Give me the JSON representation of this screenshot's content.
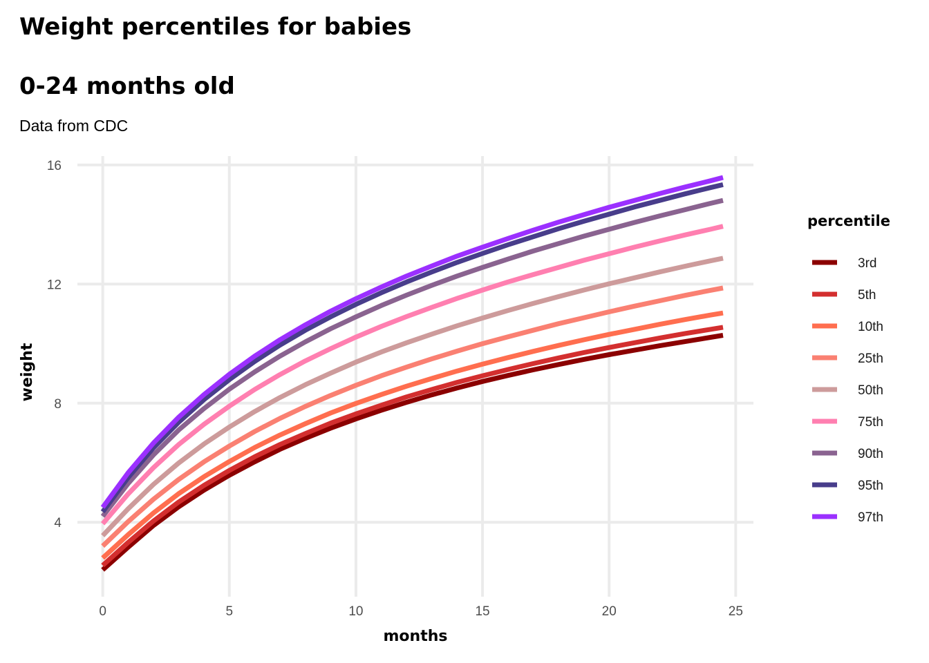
{
  "title_line1": "Weight percentiles for babies",
  "title_line2": "0-24 months old",
  "subtitle": "Data from CDC",
  "chart_data": {
    "type": "line",
    "title": "Weight percentiles for babies\n\n0-24 months old",
    "subtitle": "Data from CDC",
    "xlabel": "months",
    "ylabel": "weight",
    "xlim": [
      -1,
      25.7
    ],
    "ylim": [
      1.5,
      16.3
    ],
    "xticks": [
      0,
      5,
      10,
      15,
      20,
      25
    ],
    "yticks": [
      4,
      8,
      12,
      16
    ],
    "grid": true,
    "legend_title": "percentile",
    "legend_position": "right",
    "x": [
      0,
      1,
      2,
      3,
      4,
      5,
      6,
      7,
      8,
      9,
      10,
      11,
      12,
      13,
      14,
      15,
      16,
      17,
      18,
      19,
      20,
      21,
      22,
      23,
      24,
      24.5
    ],
    "series": [
      {
        "name": "3rd",
        "color": "#8b0000",
        "values": [
          2.4,
          3.16,
          3.89,
          4.52,
          5.08,
          5.58,
          6.03,
          6.45,
          6.82,
          7.16,
          7.47,
          7.76,
          8.03,
          8.28,
          8.51,
          8.73,
          8.93,
          9.12,
          9.3,
          9.47,
          9.63,
          9.78,
          9.93,
          10.07,
          10.21,
          10.28
        ]
      },
      {
        "name": "5th",
        "color": "#d32f2f",
        "values": [
          2.55,
          3.32,
          4.04,
          4.68,
          5.24,
          5.74,
          6.2,
          6.61,
          6.98,
          7.33,
          7.64,
          7.93,
          8.21,
          8.46,
          8.7,
          8.92,
          9.13,
          9.33,
          9.52,
          9.7,
          9.87,
          10.03,
          10.19,
          10.34,
          10.48,
          10.55
        ]
      },
      {
        "name": "10th",
        "color": "#ff6e4f",
        "values": [
          2.8,
          3.58,
          4.31,
          4.96,
          5.53,
          6.04,
          6.51,
          6.93,
          7.31,
          7.67,
          7.99,
          8.29,
          8.57,
          8.83,
          9.08,
          9.31,
          9.53,
          9.74,
          9.94,
          10.13,
          10.31,
          10.48,
          10.65,
          10.81,
          10.96,
          11.03
        ]
      },
      {
        "name": "25th",
        "color": "#fa8072",
        "values": [
          3.2,
          4.02,
          4.77,
          5.44,
          6.03,
          6.56,
          7.05,
          7.49,
          7.89,
          8.26,
          8.6,
          8.92,
          9.21,
          9.49,
          9.75,
          10.0,
          10.23,
          10.45,
          10.67,
          10.87,
          11.07,
          11.26,
          11.44,
          11.62,
          11.79,
          11.87
        ]
      },
      {
        "name": "50th",
        "color": "#cd9b9b",
        "values": [
          3.55,
          4.45,
          5.27,
          5.99,
          6.63,
          7.2,
          7.72,
          8.19,
          8.62,
          9.01,
          9.38,
          9.72,
          10.03,
          10.32,
          10.6,
          10.86,
          11.11,
          11.35,
          11.58,
          11.8,
          12.01,
          12.21,
          12.41,
          12.6,
          12.78,
          12.87
        ]
      },
      {
        "name": "75th",
        "color": "#ff7fb0",
        "values": [
          3.95,
          4.95,
          5.83,
          6.61,
          7.29,
          7.9,
          8.46,
          8.96,
          9.42,
          9.83,
          10.22,
          10.58,
          10.91,
          11.22,
          11.52,
          11.8,
          12.07,
          12.32,
          12.56,
          12.8,
          13.02,
          13.24,
          13.45,
          13.65,
          13.84,
          13.94
        ]
      },
      {
        "name": "90th",
        "color": "#8a6390",
        "values": [
          4.2,
          5.3,
          6.26,
          7.1,
          7.82,
          8.47,
          9.05,
          9.58,
          10.06,
          10.5,
          10.9,
          11.28,
          11.63,
          11.96,
          12.27,
          12.56,
          12.84,
          13.11,
          13.36,
          13.61,
          13.84,
          14.07,
          14.29,
          14.5,
          14.71,
          14.81
        ]
      },
      {
        "name": "95th",
        "color": "#483d8b",
        "values": [
          4.35,
          5.5,
          6.5,
          7.36,
          8.12,
          8.79,
          9.4,
          9.95,
          10.45,
          10.9,
          11.32,
          11.71,
          12.07,
          12.41,
          12.73,
          13.03,
          13.32,
          13.59,
          13.86,
          14.11,
          14.35,
          14.59,
          14.81,
          15.03,
          15.24,
          15.34
        ]
      },
      {
        "name": "97th",
        "color": "#9b30ff",
        "values": [
          4.5,
          5.66,
          6.66,
          7.53,
          8.29,
          8.97,
          9.58,
          10.13,
          10.63,
          11.09,
          11.51,
          11.9,
          12.27,
          12.61,
          12.94,
          13.24,
          13.53,
          13.81,
          14.08,
          14.33,
          14.58,
          14.81,
          15.04,
          15.26,
          15.47,
          15.58
        ]
      }
    ]
  }
}
